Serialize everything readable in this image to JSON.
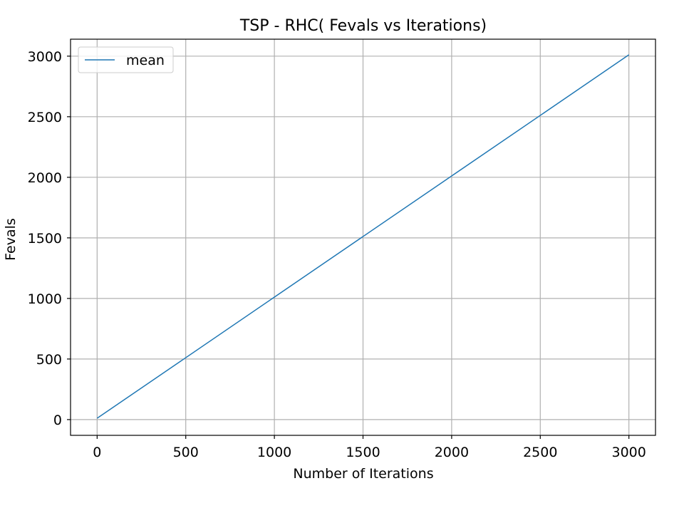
{
  "chart_data": {
    "type": "line",
    "title": "TSP - RHC( Fevals vs Iterations)",
    "xlabel": "Number of Iterations",
    "ylabel": "Fevals",
    "xlim": [
      -150,
      3150
    ],
    "ylim": [
      -130,
      3140
    ],
    "x_ticks": [
      0,
      500,
      1000,
      1500,
      2000,
      2500,
      3000
    ],
    "y_ticks": [
      0,
      500,
      1000,
      1500,
      2000,
      2500,
      3000
    ],
    "grid": true,
    "legend_position": "upper-left",
    "series": [
      {
        "name": "mean",
        "color": "#1f77b4",
        "x": [
          0,
          3000
        ],
        "y": [
          11,
          3011
        ]
      }
    ]
  }
}
